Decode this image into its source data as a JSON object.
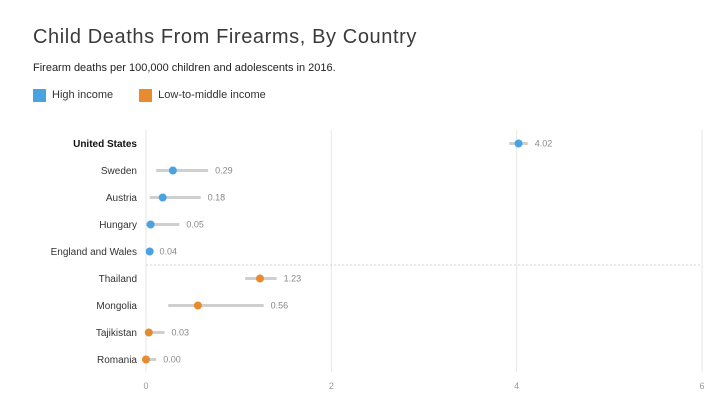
{
  "chart_data": {
    "type": "dot-range",
    "title": "Child Deaths From Firearms, By Country",
    "subtitle": "Firearm deaths per 100,000 children and adolescents in 2016.",
    "legend": [
      {
        "label": "High income",
        "color": "#4aa3df"
      },
      {
        "label": "Low-to-middle income",
        "color": "#e88b2e"
      }
    ],
    "xlim": [
      0,
      6
    ],
    "xticks": [
      0,
      2,
      4,
      6
    ],
    "series": [
      {
        "country": "United States",
        "value": 4.02,
        "label": "4.02",
        "low": 3.92,
        "high": 4.12,
        "group": "High income",
        "bold": true
      },
      {
        "country": "Sweden",
        "value": 0.29,
        "label": "0.29",
        "low": 0.11,
        "high": 0.67,
        "group": "High income"
      },
      {
        "country": "Austria",
        "value": 0.18,
        "label": "0.18",
        "low": 0.04,
        "high": 0.59,
        "group": "High income"
      },
      {
        "country": "Hungary",
        "value": 0.05,
        "label": "0.05",
        "low": 0.0,
        "high": 0.36,
        "group": "High income"
      },
      {
        "country": "England and Wales",
        "value": 0.04,
        "label": "0.04",
        "low": 0.01,
        "high": 0.07,
        "group": "High income"
      },
      {
        "country": "Thailand",
        "value": 1.23,
        "label": "1.23",
        "low": 1.07,
        "high": 1.41,
        "group": "Low-to-middle income"
      },
      {
        "country": "Mongolia",
        "value": 0.56,
        "label": "0.56",
        "low": 0.24,
        "high": 1.27,
        "group": "Low-to-middle income"
      },
      {
        "country": "Tajikistan",
        "value": 0.03,
        "label": "0.03",
        "low": 0.0,
        "high": 0.2,
        "group": "Low-to-middle income"
      },
      {
        "country": "Romania",
        "value": 0.0,
        "label": "0.00",
        "low": 0.0,
        "high": 0.11,
        "group": "Low-to-middle income"
      }
    ],
    "colors": {
      "grid": "#e6e6e6",
      "ci": "#cfcfcf",
      "divider": "#d4d4d4",
      "axis": "#999999"
    }
  }
}
